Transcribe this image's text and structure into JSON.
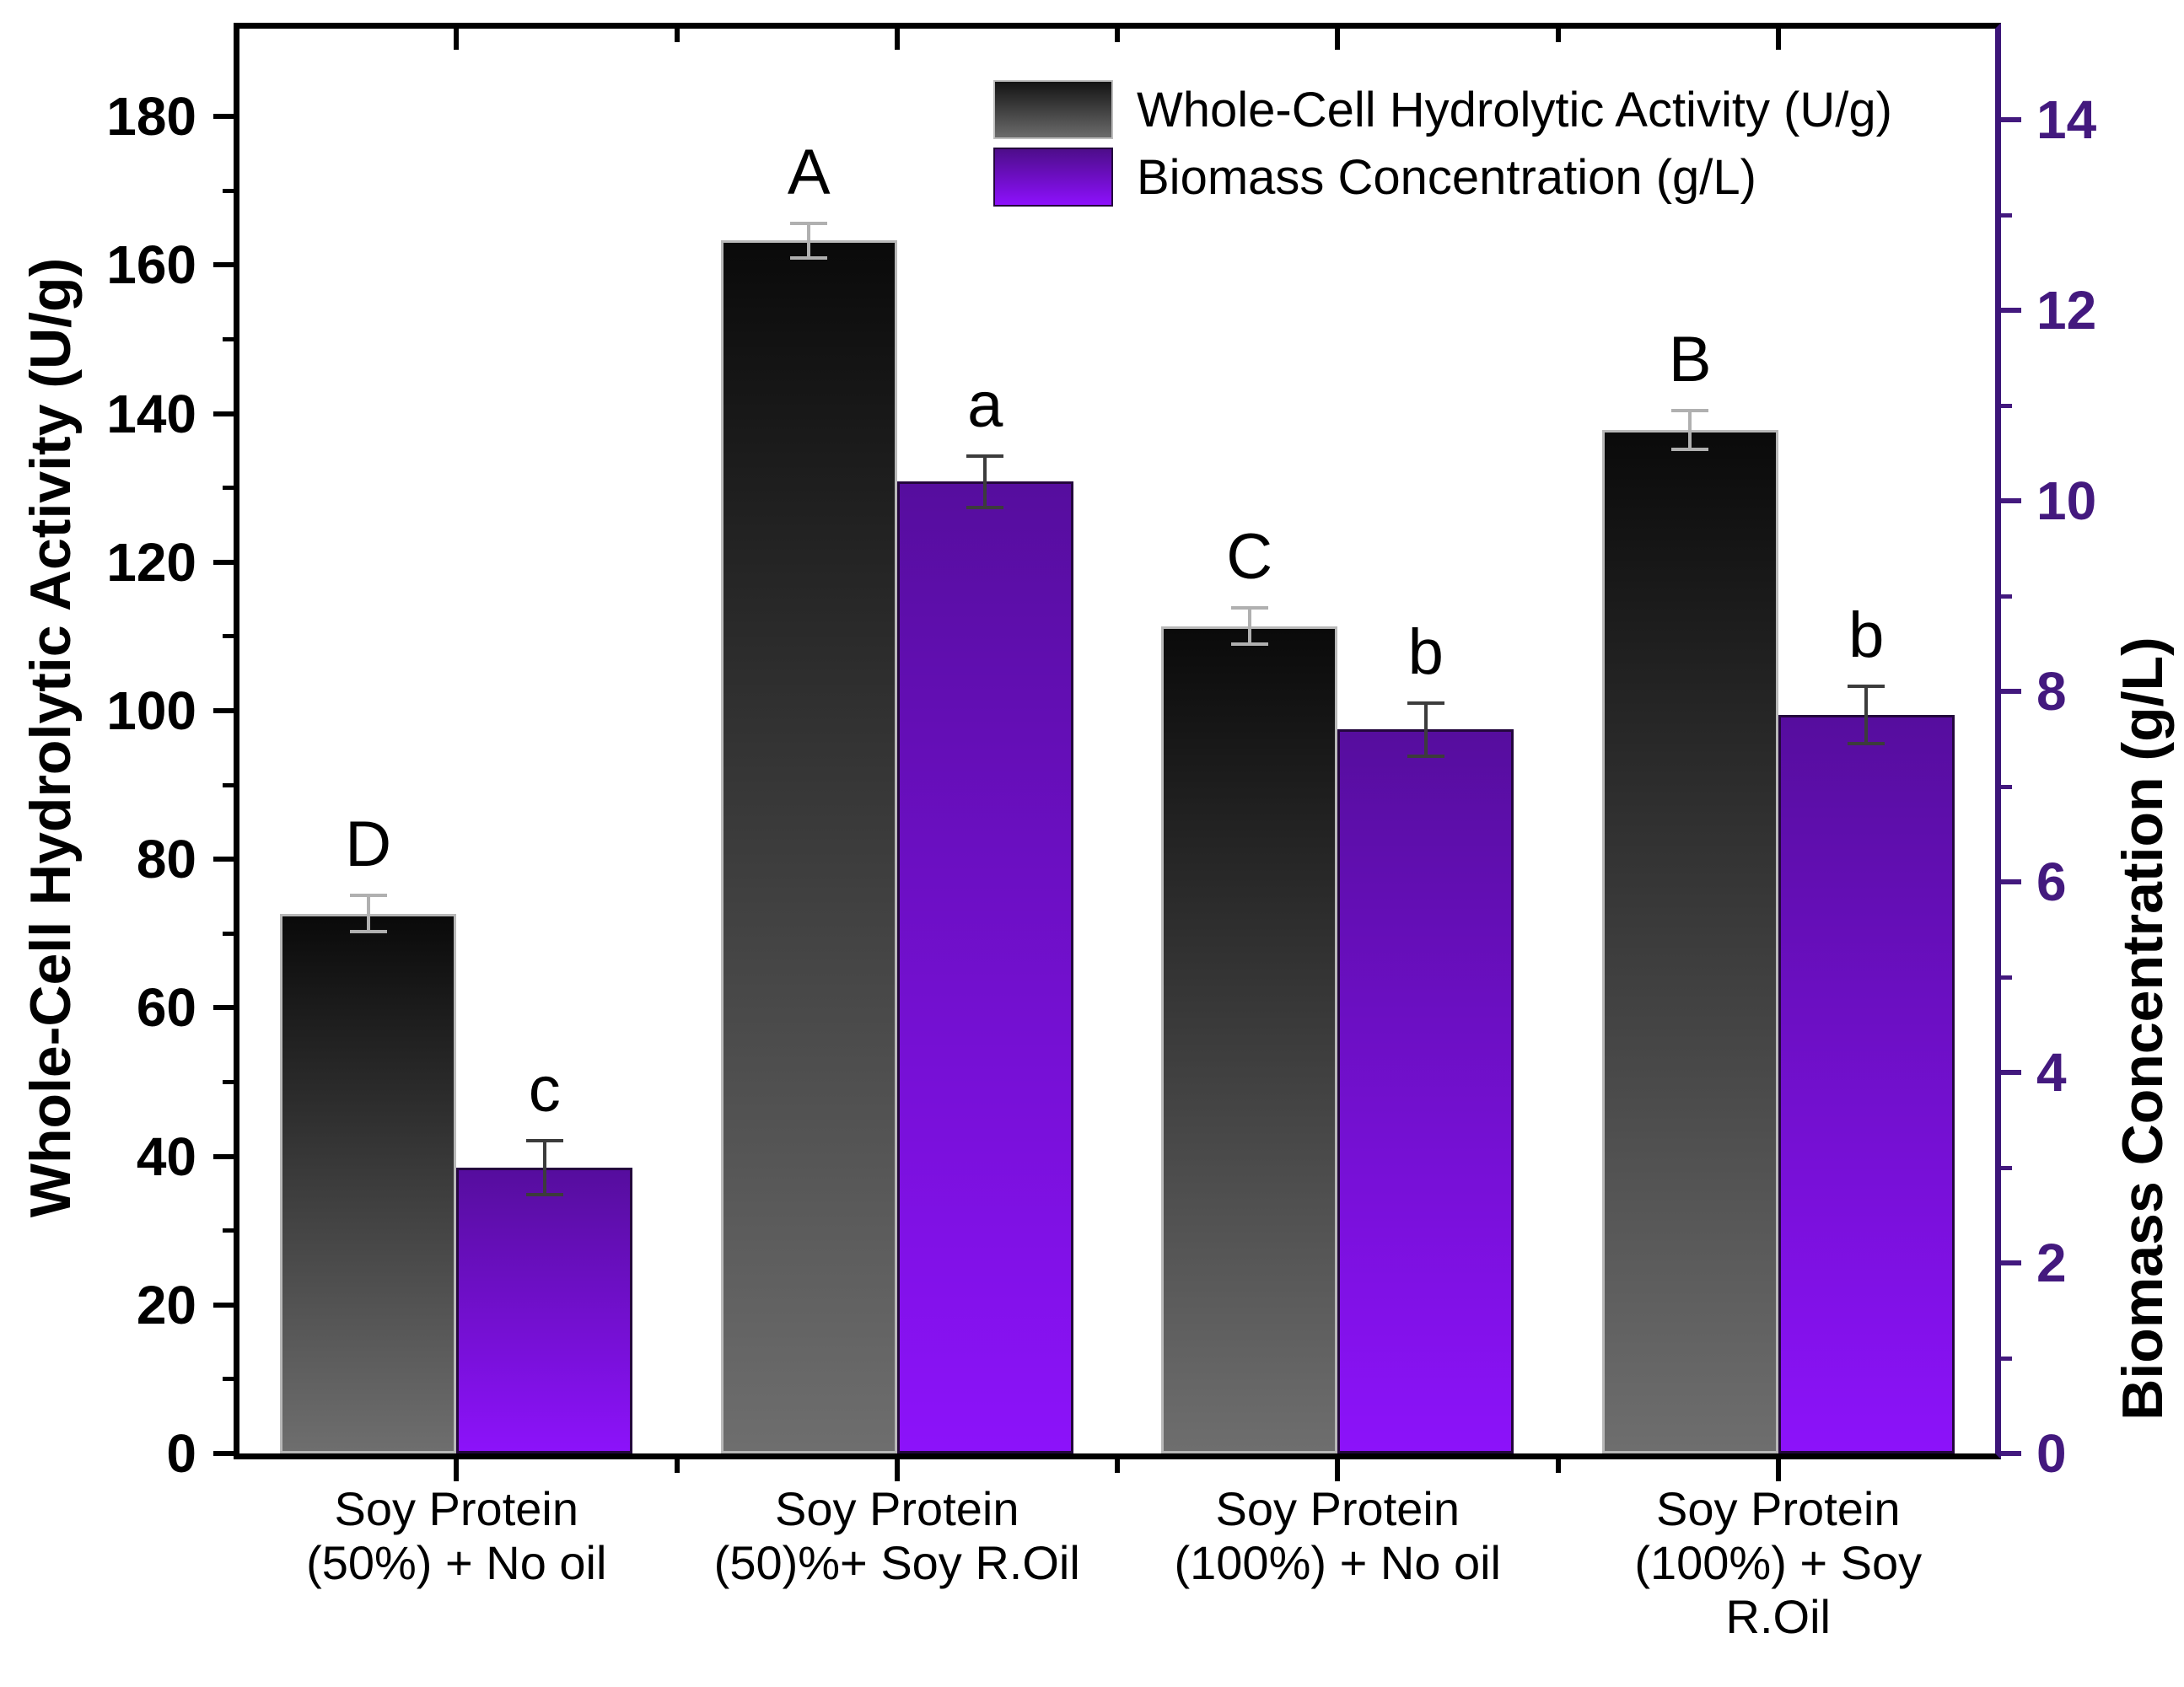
{
  "chart_data": {
    "type": "bar",
    "title": "",
    "grid": false,
    "legend_position": "top-right-inside",
    "categories": [
      {
        "lines": [
          "Soy Protein",
          "(50%) + No oil"
        ]
      },
      {
        "lines": [
          "Soy Protein",
          "(50)%+ Soy R.Oil"
        ]
      },
      {
        "lines": [
          "Soy Protein",
          "(100%) + No oil"
        ]
      },
      {
        "lines": [
          "Soy Protein",
          "(100%) + Soy",
          "R.Oil"
        ]
      }
    ],
    "series": [
      {
        "name": "Whole-Cell Hydrolytic Activity (U/g)",
        "axis": "left",
        "values": [
          72.7,
          163.3,
          111.4,
          137.8
        ],
        "errors": [
          2.4,
          2.3,
          2.4,
          2.6
        ],
        "sig_letters": [
          "D",
          "A",
          "C",
          "B"
        ],
        "fill_top": "#0a0a0a",
        "fill_bottom": "#6e6e6e",
        "border_color": "#b8b8b8",
        "error_color": "#b0b0b0"
      },
      {
        "name": "Biomass Concentration (g/L)",
        "axis": "right",
        "values": [
          3.0,
          10.2,
          7.6,
          7.75
        ],
        "errors": [
          0.28,
          0.27,
          0.28,
          0.3
        ],
        "sig_letters": [
          "c",
          "a",
          "b",
          "b"
        ],
        "fill_top": "#560d9e",
        "fill_bottom": "#8c12fa",
        "border_color": "#24073d",
        "error_color": "#3c3c3c"
      }
    ],
    "left_axis": {
      "label": "Whole-Cell Hydrolytic Activity (U/g)",
      "ticks": [
        0,
        20,
        40,
        60,
        80,
        100,
        120,
        140,
        160,
        180
      ],
      "minor_ticks": [
        10,
        30,
        50,
        70,
        90,
        110,
        130,
        150,
        170
      ],
      "range": [
        0,
        192.4
      ],
      "color": "#000000"
    },
    "right_axis": {
      "label": "Biomass Concentration (g/L)",
      "ticks": [
        0,
        2,
        4,
        6,
        8,
        10,
        12,
        14
      ],
      "minor_ticks": [
        1,
        3,
        5,
        7,
        9,
        11,
        13
      ],
      "range": [
        0,
        15
      ],
      "color": "#43197e"
    }
  }
}
